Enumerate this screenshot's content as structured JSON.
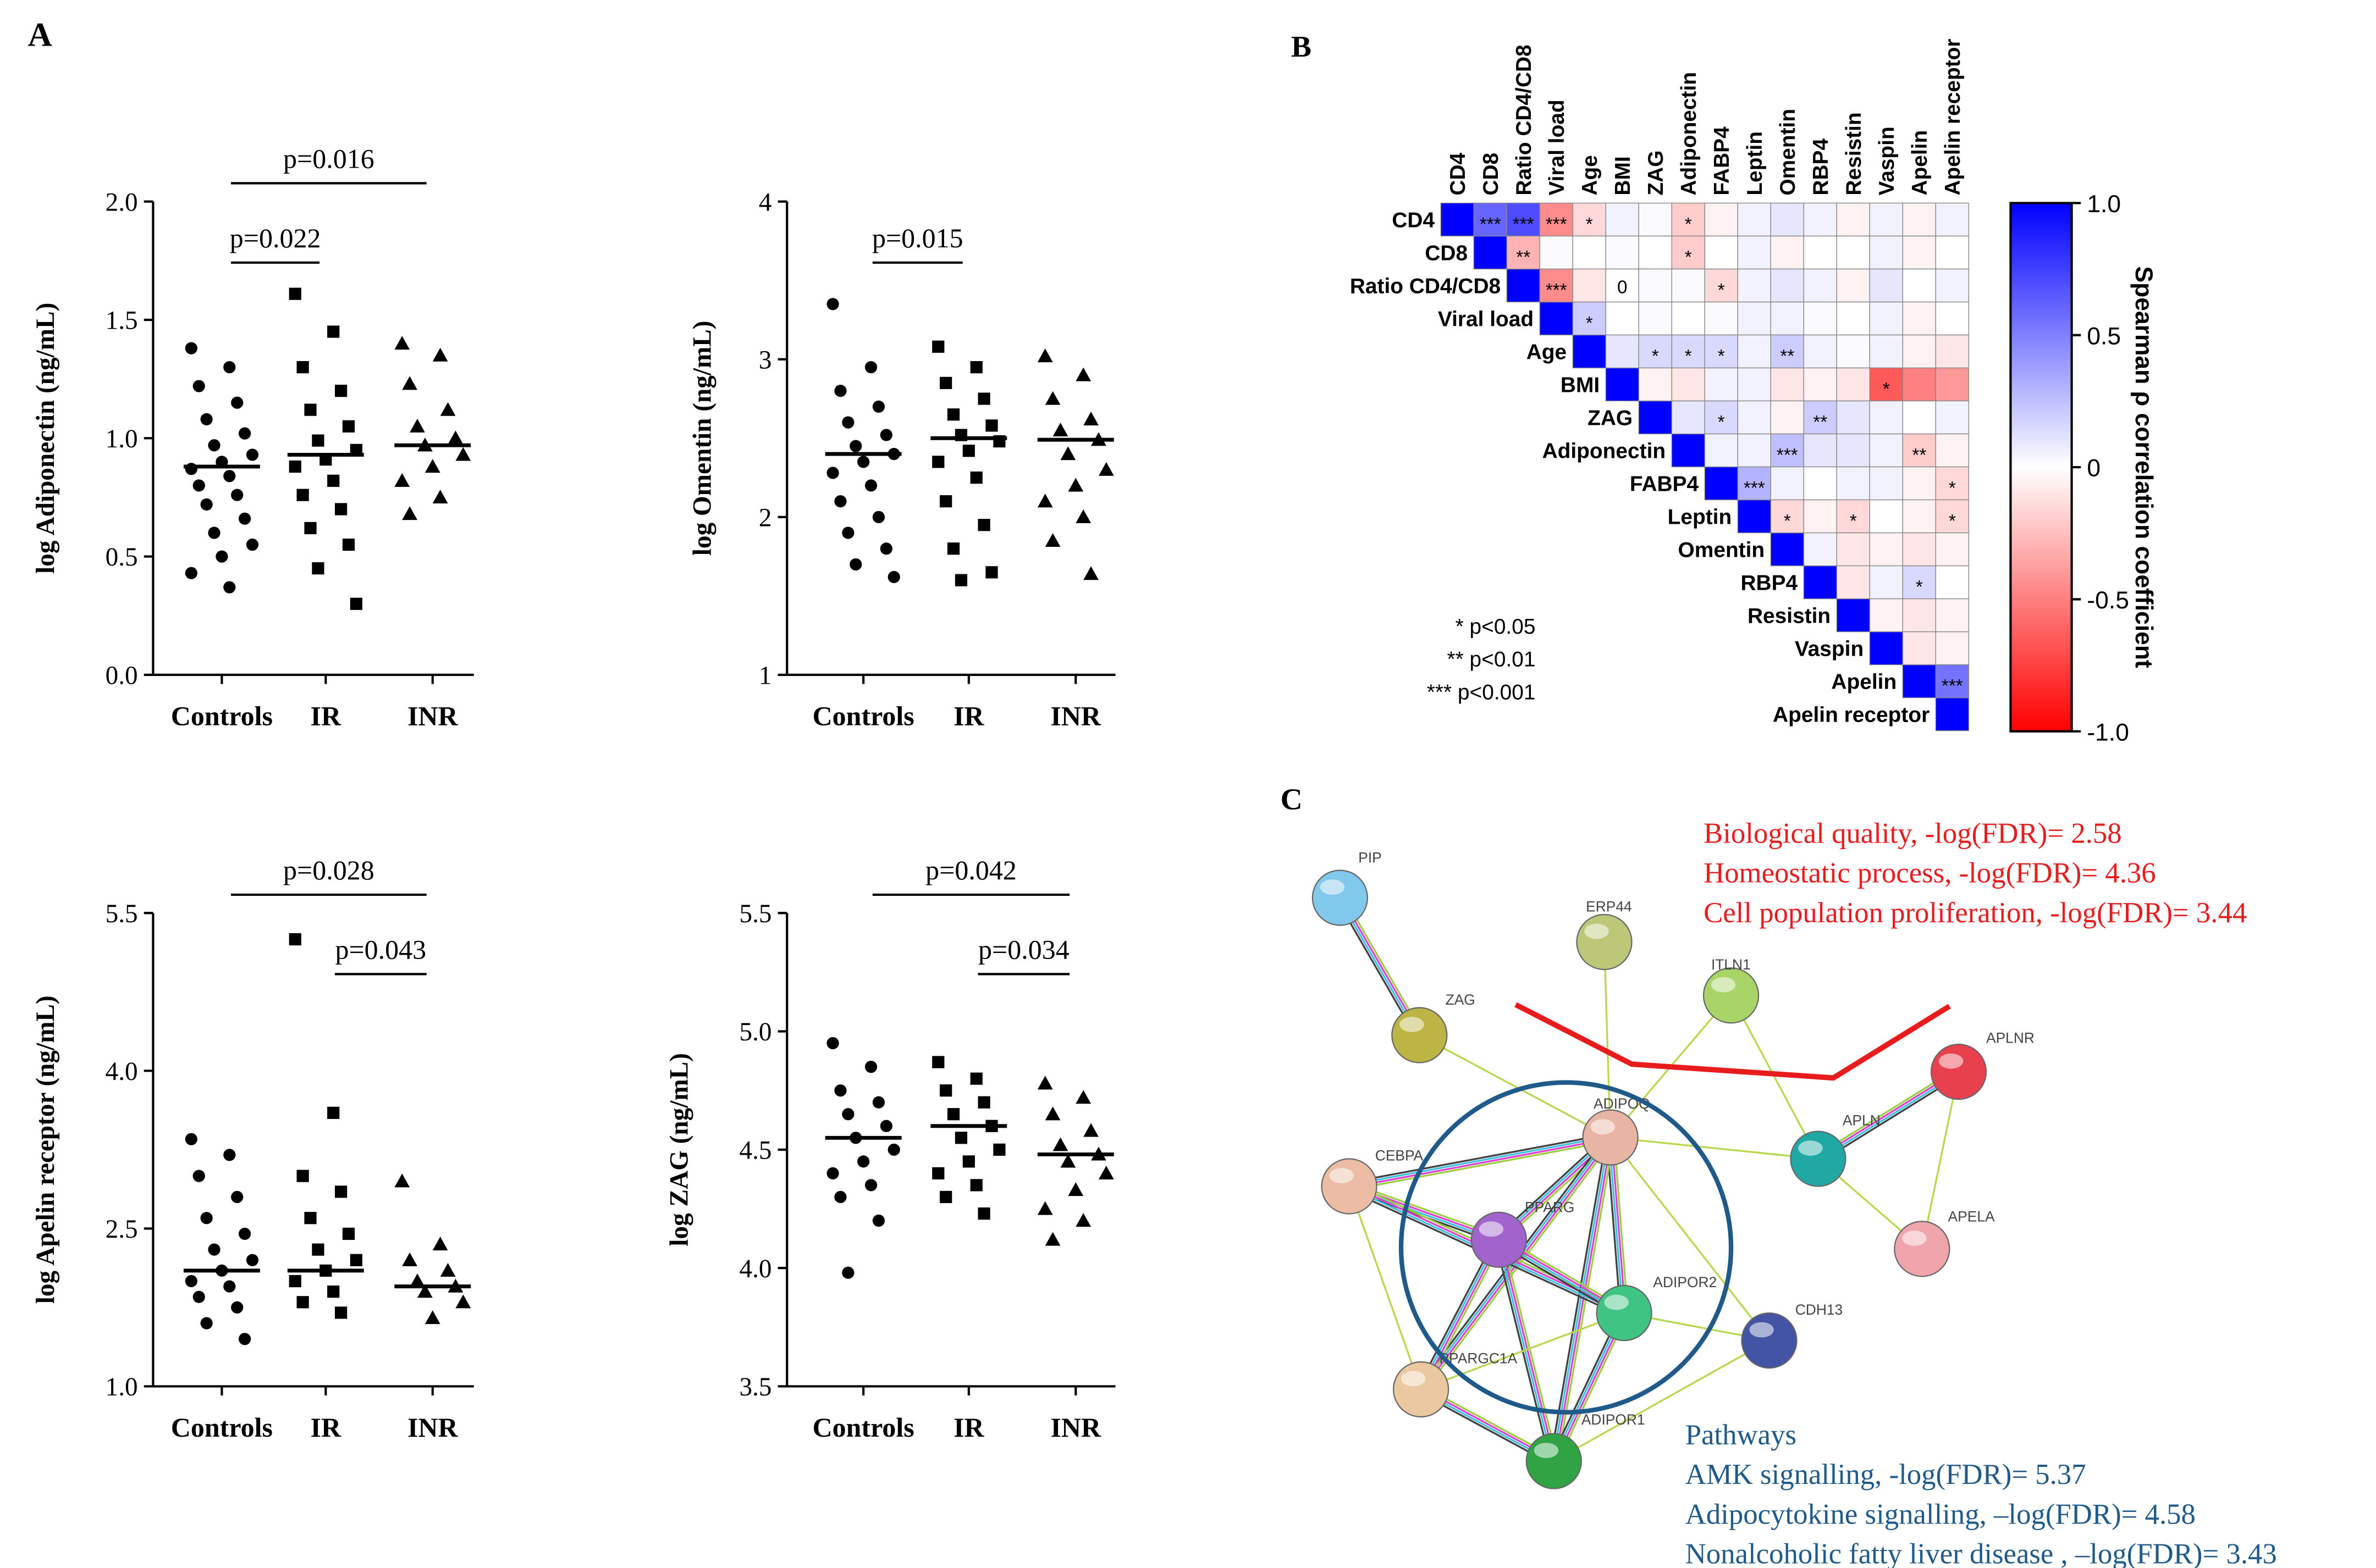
{
  "panel_labels": [
    "A",
    "B",
    "C"
  ],
  "chart_data": [
    {
      "type": "dotplot",
      "ylabel": "log Adiponectin (ng/mL)",
      "categories": [
        "Controls",
        "IR",
        "INR"
      ],
      "values": [
        [
          1.38,
          1.3,
          1.22,
          1.15,
          1.08,
          1.02,
          0.97,
          0.93,
          0.9,
          0.87,
          0.84,
          0.8,
          0.76,
          0.72,
          0.66,
          0.6,
          0.55,
          0.5,
          0.43,
          0.37
        ],
        [
          1.61,
          1.45,
          1.3,
          1.2,
          1.12,
          1.05,
          0.99,
          0.95,
          0.91,
          0.88,
          0.82,
          0.76,
          0.7,
          0.62,
          0.55,
          0.45,
          0.3
        ],
        [
          1.4,
          1.35,
          1.23,
          1.12,
          1.05,
          1.0,
          0.97,
          0.93,
          0.88,
          0.82,
          0.75,
          0.68
        ]
      ],
      "medians": [
        0.88,
        0.93,
        0.97
      ],
      "ylim": [
        0,
        2
      ],
      "yticks": [
        {
          "value": 0,
          "label": "0.0"
        },
        0.5,
        {
          "value": 1,
          "label": "1.0"
        },
        1.5,
        {
          "value": 2,
          "label": "2.0"
        }
      ],
      "comparisons": [
        {
          "label": "p=0.022",
          "groups": [
            0,
            1
          ]
        },
        {
          "label": "p=0.016",
          "groups": [
            0,
            2
          ]
        }
      ]
    },
    {
      "type": "dotplot",
      "ylabel": "log Omentin (ng/mL)",
      "categories": [
        "Controls",
        "IR",
        "INR"
      ],
      "values": [
        [
          3.35,
          2.95,
          2.8,
          2.7,
          2.6,
          2.52,
          2.45,
          2.4,
          2.35,
          2.28,
          2.2,
          2.1,
          2.0,
          1.9,
          1.8,
          1.7,
          1.62
        ],
        [
          3.08,
          2.95,
          2.85,
          2.75,
          2.65,
          2.58,
          2.52,
          2.48,
          2.42,
          2.35,
          2.25,
          2.1,
          1.95,
          1.8,
          1.65,
          1.6
        ],
        [
          3.02,
          2.9,
          2.75,
          2.62,
          2.55,
          2.49,
          2.4,
          2.3,
          2.2,
          2.1,
          2.0,
          1.85,
          1.64
        ]
      ],
      "medians": [
        2.4,
        2.5,
        2.49
      ],
      "ylim": [
        1,
        4
      ],
      "yticks": [
        1,
        2,
        3,
        4
      ],
      "comparisons": [
        {
          "label": "p=0.015",
          "groups": [
            0,
            1
          ]
        }
      ]
    },
    {
      "type": "dotplot",
      "ylabel": "log Apelin receptor (ng/mL)",
      "categories": [
        "Controls",
        "IR",
        "INR"
      ],
      "values": [
        [
          3.35,
          3.2,
          3.0,
          2.8,
          2.6,
          2.45,
          2.3,
          2.2,
          2.1,
          2.0,
          1.95,
          1.85,
          1.75,
          1.6,
          1.45
        ],
        [
          5.25,
          3.6,
          3.0,
          2.85,
          2.6,
          2.45,
          2.3,
          2.2,
          2.1,
          2.0,
          1.9,
          1.8,
          1.7
        ],
        [
          2.95,
          2.35,
          2.2,
          2.1,
          2.0,
          1.95,
          1.9,
          1.8,
          1.65
        ]
      ],
      "medians": [
        2.1,
        2.1,
        1.95
      ],
      "ylim": [
        1,
        5.5
      ],
      "yticks": [
        {
          "value": 1,
          "label": "1.0"
        },
        2.5,
        {
          "value": 4,
          "label": "4.0"
        },
        5.5
      ],
      "comparisons": [
        {
          "label": "p=0.043",
          "groups": [
            1,
            2
          ]
        },
        {
          "label": "p=0.028",
          "groups": [
            0,
            2
          ]
        }
      ]
    },
    {
      "type": "dotplot",
      "ylabel": "log ZAG (ng/mL)",
      "categories": [
        "Controls",
        "IR",
        "INR"
      ],
      "values": [
        [
          4.95,
          4.85,
          4.75,
          4.7,
          4.65,
          4.6,
          4.55,
          4.5,
          4.45,
          4.4,
          4.35,
          4.3,
          4.2,
          3.98
        ],
        [
          4.87,
          4.8,
          4.75,
          4.7,
          4.65,
          4.6,
          4.55,
          4.5,
          4.45,
          4.4,
          4.35,
          4.3,
          4.23
        ],
        [
          4.78,
          4.72,
          4.65,
          4.58,
          4.52,
          4.48,
          4.45,
          4.4,
          4.33,
          4.25,
          4.2,
          4.12
        ]
      ],
      "medians": [
        4.55,
        4.6,
        4.48
      ],
      "ylim": [
        3.5,
        5.5
      ],
      "yticks": [
        3.5,
        {
          "value": 4,
          "label": "4.0"
        },
        4.5,
        {
          "value": 5,
          "label": "5.0"
        },
        5.5
      ],
      "comparisons": [
        {
          "label": "p=0.034",
          "groups": [
            1,
            2
          ]
        },
        {
          "label": "p=0.042",
          "groups": [
            0,
            2
          ]
        }
      ]
    },
    {
      "type": "heatmap",
      "variables": [
        "CD4",
        "CD8",
        "Ratio CD4/CD8",
        "Viral load",
        "Age",
        "BMI",
        "ZAG",
        "Adiponectin",
        "FABP4",
        "Leptin",
        "Omentin",
        "RBP4",
        "Resistin",
        "Vaspin",
        "Apelin",
        "Apelin receptor"
      ],
      "values": [
        [
          0.6,
          0.7,
          -0.45,
          -0.15,
          0.05,
          0.02,
          -0.2,
          -0.05,
          0.05,
          0.1,
          0.05,
          -0.05,
          0.05,
          -0.05,
          0.05
        ],
        [
          -0.3,
          0.02,
          0,
          0.02,
          0,
          -0.2,
          0,
          0.05,
          -0.05,
          0,
          0,
          0.05,
          -0.05,
          0
        ],
        [
          -0.45,
          -0.1,
          0,
          0.02,
          0.02,
          -0.15,
          0.05,
          0.1,
          0.05,
          -0.05,
          0.1,
          0,
          0.05
        ],
        [
          0.2,
          0,
          0.02,
          0,
          0.02,
          0.05,
          0.05,
          0.02,
          0,
          0.05,
          -0.05,
          0
        ],
        [
          0.1,
          0.15,
          0.15,
          0.15,
          0.05,
          0.2,
          0.05,
          0.02,
          0.05,
          -0.05,
          -0.1
        ],
        [
          -0.05,
          -0.1,
          0.05,
          0.05,
          -0.1,
          -0.05,
          -0.1,
          -0.65,
          -0.5,
          -0.4
        ],
        [
          0.1,
          0.15,
          0.05,
          -0.05,
          0.2,
          0.1,
          0.05,
          0,
          0.05
        ],
        [
          0.05,
          0.05,
          0.25,
          0.1,
          0.1,
          0.05,
          -0.2,
          -0.05
        ],
        [
          0.3,
          0.05,
          0,
          0.05,
          0.05,
          -0.05,
          -0.15
        ],
        [
          -0.15,
          -0.05,
          -0.15,
          0,
          -0.05,
          -0.15
        ],
        [
          0.05,
          -0.1,
          -0.05,
          -0.1,
          -0.05
        ],
        [
          -0.1,
          0.05,
          0.15,
          0
        ],
        [
          -0.05,
          -0.1,
          -0.05
        ],
        [
          -0.1,
          -0.05
        ],
        [
          0.55
        ]
      ],
      "cell_labels": [
        {
          "row": 0,
          "col": 1,
          "text": "***"
        },
        {
          "row": 0,
          "col": 2,
          "text": "***"
        },
        {
          "row": 0,
          "col": 3,
          "text": "***"
        },
        {
          "row": 0,
          "col": 4,
          "text": "*"
        },
        {
          "row": 0,
          "col": 7,
          "text": "*"
        },
        {
          "row": 1,
          "col": 2,
          "text": "**"
        },
        {
          "row": 1,
          "col": 7,
          "text": "*"
        },
        {
          "row": 2,
          "col": 3,
          "text": "***"
        },
        {
          "row": 2,
          "col": 5,
          "text": "0"
        },
        {
          "row": 2,
          "col": 8,
          "text": "*"
        },
        {
          "row": 3,
          "col": 4,
          "text": "*"
        },
        {
          "row": 4,
          "col": 6,
          "text": "*"
        },
        {
          "row": 4,
          "col": 7,
          "text": "*"
        },
        {
          "row": 4,
          "col": 8,
          "text": "*"
        },
        {
          "row": 4,
          "col": 10,
          "text": "**"
        },
        {
          "row": 5,
          "col": 13,
          "text": "*"
        },
        {
          "row": 6,
          "col": 8,
          "text": "*"
        },
        {
          "row": 6,
          "col": 11,
          "text": "**"
        },
        {
          "row": 7,
          "col": 10,
          "text": "***"
        },
        {
          "row": 7,
          "col": 14,
          "text": "**"
        },
        {
          "row": 8,
          "col": 9,
          "text": "***"
        },
        {
          "row": 8,
          "col": 15,
          "text": "*"
        },
        {
          "row": 9,
          "col": 10,
          "text": "*"
        },
        {
          "row": 9,
          "col": 12,
          "text": "*"
        },
        {
          "row": 9,
          "col": 15,
          "text": "*"
        },
        {
          "row": 11,
          "col": 14,
          "text": "*"
        },
        {
          "row": 14,
          "col": 15,
          "text": "***"
        }
      ],
      "colorbar": {
        "label": "Spearman ρ correlation coefficient",
        "lim": [
          -1,
          1
        ],
        "ticks": [
          {
            "value": 1,
            "label": "1.0"
          },
          0.5,
          0,
          -0.5,
          {
            "value": -1,
            "label": "-1.0"
          }
        ],
        "colors": [
          "#ff0000",
          "#ffffff",
          "#0000ff"
        ]
      },
      "significance_legend": [
        "* p<0.05",
        "** p<0.01",
        "*** p<0.001"
      ]
    }
  ],
  "network": {
    "nodes": [
      "PIP",
      "ERP44",
      "ITLN1",
      "ZAG",
      "APLNR",
      "ADIPOQ",
      "APLN",
      "CEBPA",
      "PPARG",
      "APELA",
      "ADIPOR2",
      "CDH13",
      "PPARGC1A",
      "ADIPOR1"
    ],
    "biological_terms": [
      "Biological quality, -log(FDR)= 2.58",
      "Homeostatic process, -log(FDR)= 4.36",
      "Cell population proliferation, -log(FDR)= 3.44"
    ],
    "pathways_title": "Pathways",
    "pathways": [
      "AMK signalling, -log(FDR)= 5.37",
      "Adipocytokine signalling, –log(FDR)= 4.58",
      "Nonalcoholic fatty liver disease , –log(FDR)= 3.43"
    ]
  }
}
